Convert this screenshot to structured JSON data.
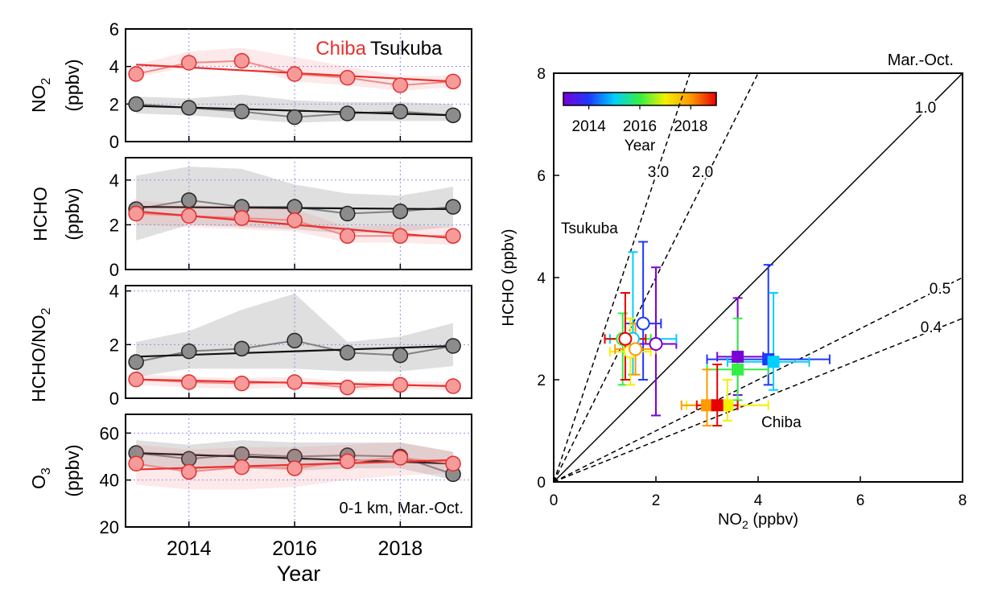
{
  "chart_data": [
    {
      "type": "line",
      "panel": "NO2",
      "ylabel_line1": "NO",
      "ylabel_sub": "2",
      "ylabel_line2": "(ppbv)",
      "ylim": [
        0,
        6
      ],
      "yticks": [
        "0",
        "2",
        "4",
        "6"
      ],
      "x": [
        2013,
        2014,
        2015,
        2016,
        2017,
        2018,
        2019
      ],
      "legend": {
        "chiba": "Chiba",
        "tsukuba": "Tsukuba",
        "placement": "top-right"
      },
      "series": [
        {
          "name": "Chiba",
          "color": "#e8312f",
          "values": [
            3.6,
            4.2,
            4.3,
            3.6,
            3.4,
            3.0,
            3.2
          ],
          "trend": [
            4.1,
            3.2
          ],
          "band_low": [
            3.4,
            4.0,
            4.0,
            3.2,
            3.0,
            2.7,
            2.9
          ],
          "band_high": [
            4.1,
            4.8,
            5.0,
            4.5,
            4.0,
            3.5,
            3.5
          ]
        },
        {
          "name": "Tsukuba",
          "color": "#444444",
          "values": [
            2.0,
            1.8,
            1.6,
            1.3,
            1.5,
            1.6,
            1.4
          ],
          "trend": [
            1.9,
            1.4
          ],
          "band_low": [
            1.5,
            1.4,
            1.2,
            1.0,
            1.1,
            1.1,
            1.1
          ],
          "band_high": [
            2.4,
            2.3,
            2.5,
            2.2,
            2.1,
            2.1,
            2.0
          ]
        }
      ]
    },
    {
      "type": "line",
      "panel": "HCHO",
      "ylabel_line1": "HCHO",
      "ylabel_line2": "(ppbv)",
      "ylim": [
        0,
        5
      ],
      "yticks": [
        "0",
        "2",
        "4"
      ],
      "x": [
        2013,
        2014,
        2015,
        2016,
        2017,
        2018,
        2019
      ],
      "series": [
        {
          "name": "Chiba",
          "color": "#e8312f",
          "values": [
            2.5,
            2.4,
            2.3,
            2.2,
            1.5,
            1.5,
            1.5
          ],
          "trend": [
            2.6,
            1.4
          ],
          "band_low": [
            2.0,
            1.9,
            1.8,
            1.7,
            1.2,
            1.2,
            1.1
          ],
          "band_high": [
            3.1,
            2.9,
            2.8,
            2.7,
            1.9,
            2.0,
            1.9
          ]
        },
        {
          "name": "Tsukuba",
          "color": "#444444",
          "values": [
            2.7,
            3.1,
            2.8,
            2.8,
            2.5,
            2.6,
            2.8
          ],
          "trend": [
            2.8,
            2.7
          ],
          "band_low": [
            1.3,
            2.0,
            1.9,
            1.8,
            1.6,
            1.7,
            1.9
          ],
          "band_high": [
            4.2,
            4.6,
            4.5,
            3.8,
            3.4,
            3.3,
            3.7
          ]
        }
      ]
    },
    {
      "type": "line",
      "panel": "HCHO/NO2",
      "ylabel_line1": "HCHO/NO",
      "ylabel_sub": "2",
      "ylim": [
        0,
        4.2
      ],
      "yticks": [
        "0",
        "2",
        "4"
      ],
      "x": [
        2013,
        2014,
        2015,
        2016,
        2017,
        2018,
        2019
      ],
      "series": [
        {
          "name": "Chiba",
          "color": "#e8312f",
          "values": [
            0.7,
            0.6,
            0.55,
            0.6,
            0.4,
            0.5,
            0.45
          ],
          "trend": [
            0.7,
            0.45
          ],
          "band_low": [
            0.5,
            0.4,
            0.35,
            0.4,
            0.3,
            0.35,
            0.3
          ],
          "band_high": [
            0.9,
            0.8,
            0.75,
            0.8,
            0.6,
            0.65,
            0.6
          ]
        },
        {
          "name": "Tsukuba",
          "color": "#444444",
          "values": [
            1.35,
            1.75,
            1.85,
            2.15,
            1.7,
            1.6,
            1.95
          ],
          "trend": [
            1.55,
            1.95
          ],
          "band_low": [
            0.8,
            1.1,
            1.1,
            1.1,
            1.0,
            1.0,
            1.2
          ],
          "band_high": [
            2.1,
            2.5,
            3.3,
            3.9,
            2.1,
            2.3,
            2.8
          ]
        }
      ]
    },
    {
      "type": "line",
      "panel": "O3",
      "ylabel_line1": "O",
      "ylabel_sub": "3",
      "ylabel_line2": "(ppbv)",
      "ylim": [
        20,
        68
      ],
      "yticks": [
        "20",
        "40",
        "60"
      ],
      "xticks": [
        "2014",
        "2016",
        "2018"
      ],
      "xlabel": "Year",
      "annotation": "0-1 km, Mar.-Oct.",
      "x": [
        2013,
        2014,
        2015,
        2016,
        2017,
        2018,
        2019
      ],
      "series": [
        {
          "name": "Chiba",
          "color": "#e8312f",
          "values": [
            47,
            43.5,
            45.5,
            45,
            48,
            49.5,
            47
          ],
          "trend": [
            44.5,
            48.5
          ],
          "band_low": [
            38,
            36,
            36,
            37,
            40,
            42,
            43
          ],
          "band_high": [
            55,
            53,
            54,
            54,
            55,
            56,
            52
          ]
        },
        {
          "name": "Tsukuba",
          "color": "#444444",
          "values": [
            51.5,
            49,
            51,
            50,
            50.5,
            50,
            42.5
          ],
          "trend": [
            51.5,
            47
          ],
          "band_low": [
            46,
            44,
            45,
            44,
            45,
            45,
            40
          ],
          "band_high": [
            57,
            55,
            57,
            56,
            56,
            56,
            52
          ]
        }
      ]
    },
    {
      "type": "scatter",
      "panel": "HCHO vs NO2",
      "title": "Mar.-Oct.",
      "xlabel_pre": "NO",
      "xlabel_sub": "2",
      "xlabel_post": " (ppbv)",
      "ylabel": "HCHO (ppbv)",
      "xlim": [
        0,
        8
      ],
      "ylim": [
        0,
        8
      ],
      "xticks": [
        "0",
        "2",
        "4",
        "6",
        "8"
      ],
      "yticks": [
        "0",
        "2",
        "4",
        "6",
        "8"
      ],
      "colorbar": {
        "label": "Year",
        "ticks": [
          "2014",
          "2016",
          "2018"
        ],
        "colors": [
          "#7a00d6",
          "#1e38ff",
          "#00cfff",
          "#34ee44",
          "#f4f000",
          "#ff9a00",
          "#e80000"
        ]
      },
      "ratio_lines": [
        {
          "slope": 3.0,
          "label": "3.0",
          "style": "dashed"
        },
        {
          "slope": 2.0,
          "label": "2.0",
          "style": "dashed"
        },
        {
          "slope": 1.0,
          "label": "1.0",
          "style": "solid"
        },
        {
          "slope": 0.5,
          "label": "0.5",
          "style": "dashed"
        },
        {
          "slope": 0.4,
          "label": "0.4",
          "style": "dashed"
        }
      ],
      "group_labels": {
        "tsukuba": "Tsukuba",
        "chiba": "Chiba"
      },
      "points": [
        {
          "site": "Tsukuba",
          "year": 2013,
          "color": "#7a00d6",
          "x": 2.0,
          "y": 2.7,
          "xerr": [
            1.6,
            2.4
          ],
          "yerr": [
            1.3,
            4.2
          ]
        },
        {
          "site": "Tsukuba",
          "year": 2014,
          "color": "#1e38ff",
          "x": 1.75,
          "y": 3.1,
          "xerr": [
            1.4,
            2.1
          ],
          "yerr": [
            2.0,
            4.7
          ]
        },
        {
          "site": "Tsukuba",
          "year": 2015,
          "color": "#00cfff",
          "x": 1.55,
          "y": 2.8,
          "xerr": [
            1.1,
            2.4
          ],
          "yerr": [
            2.1,
            4.5
          ]
        },
        {
          "site": "Tsukuba",
          "year": 2016,
          "color": "#34ee44",
          "x": 1.35,
          "y": 2.8,
          "xerr": [
            1.0,
            1.9
          ],
          "yerr": [
            1.9,
            3.3
          ]
        },
        {
          "site": "Tsukuba",
          "year": 2017,
          "color": "#f4f000",
          "x": 1.5,
          "y": 2.55,
          "xerr": [
            1.1,
            1.9
          ],
          "yerr": [
            1.9,
            3.2
          ]
        },
        {
          "site": "Tsukuba",
          "year": 2018,
          "color": "#ff9a00",
          "x": 1.6,
          "y": 2.6,
          "xerr": [
            1.2,
            2.0
          ],
          "yerr": [
            2.1,
            3.1
          ]
        },
        {
          "site": "Tsukuba",
          "year": 2019,
          "color": "#e80000",
          "x": 1.4,
          "y": 2.8,
          "xerr": [
            1.0,
            1.8
          ],
          "yerr": [
            2.0,
            3.7
          ]
        },
        {
          "site": "Chiba",
          "year": 2013,
          "color": "#7a00d6",
          "x": 3.6,
          "y": 2.45,
          "xerr": [
            3.2,
            4.1
          ],
          "yerr": [
            1.7,
            3.6
          ]
        },
        {
          "site": "Chiba",
          "year": 2014,
          "color": "#1e38ff",
          "x": 4.2,
          "y": 2.4,
          "xerr": [
            3.0,
            5.4
          ],
          "yerr": [
            1.9,
            4.25
          ]
        },
        {
          "site": "Chiba",
          "year": 2015,
          "color": "#00cfff",
          "x": 4.3,
          "y": 2.35,
          "xerr": [
            3.4,
            5.0
          ],
          "yerr": [
            1.8,
            3.7
          ]
        },
        {
          "site": "Chiba",
          "year": 2016,
          "color": "#34ee44",
          "x": 3.6,
          "y": 2.2,
          "xerr": [
            3.0,
            4.2
          ],
          "yerr": [
            1.6,
            3.2
          ]
        },
        {
          "site": "Chiba",
          "year": 2017,
          "color": "#f4f000",
          "x": 3.4,
          "y": 1.5,
          "xerr": [
            2.6,
            4.2
          ],
          "yerr": [
            1.2,
            2.0
          ]
        },
        {
          "site": "Chiba",
          "year": 2018,
          "color": "#ff9a00",
          "x": 3.0,
          "y": 1.5,
          "xerr": [
            2.5,
            3.6
          ],
          "yerr": [
            1.1,
            2.2
          ]
        },
        {
          "site": "Chiba",
          "year": 2019,
          "color": "#e80000",
          "x": 3.2,
          "y": 1.5,
          "xerr": [
            2.8,
            3.6
          ],
          "yerr": [
            1.1,
            2.3
          ]
        }
      ]
    }
  ]
}
